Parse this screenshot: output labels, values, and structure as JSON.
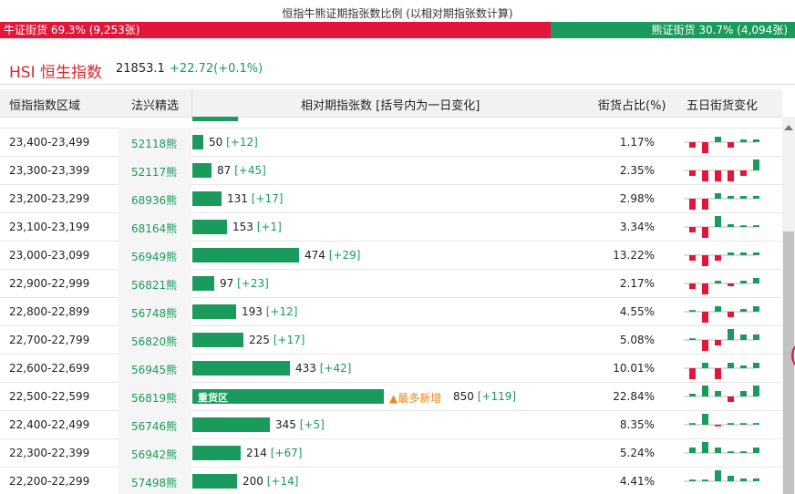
{
  "title": "恒指牛熊证期指张数比例 (以相对期指张数计算)",
  "ratio": {
    "bull_label": "牛证街货 69.3% (9,253张)",
    "bear_label": "熊证街货 30.7% (4,094张)",
    "bull_fraction": 0.693,
    "bull_color": "#e3163a",
    "bear_color": "#1a9a5c"
  },
  "index": {
    "name": "HSI 恒生指数",
    "price": "21853.1",
    "change": "+22.72(+0.1%)"
  },
  "table": {
    "headers": {
      "range": "恒指指数区域",
      "pick": "法兴精选",
      "contracts": "相对期指张数 [括号内为一日变化]",
      "share": "街货占比(%)",
      "five_day": "五日街货变化"
    },
    "rows": [
      {
        "range": "23,400-23,499",
        "code": "52118熊",
        "contracts": 50,
        "count": "50",
        "change": "[+12]",
        "share": "1.17%",
        "spark": [
          -1,
          -2,
          1,
          -1,
          0.5,
          0.5
        ]
      },
      {
        "range": "23,300-23,399",
        "code": "52117熊",
        "contracts": 87,
        "count": "87",
        "change": "[+45]",
        "share": "2.35%",
        "spark": [
          -1,
          -2,
          -2,
          -2,
          -1,
          2
        ]
      },
      {
        "range": "23,200-23,299",
        "code": "68936熊",
        "contracts": 131,
        "count": "131",
        "change": "[+17]",
        "share": "2.98%",
        "spark": [
          -2,
          -2,
          1,
          0.5,
          0.5,
          0.5
        ]
      },
      {
        "range": "23,100-23,199",
        "code": "68164熊",
        "contracts": 153,
        "count": "153",
        "change": "[+1]",
        "share": "3.34%",
        "spark": [
          -1,
          -2,
          2,
          0.5,
          0.3,
          0.3
        ]
      },
      {
        "range": "23,000-23,099",
        "code": "56949熊",
        "contracts": 474,
        "count": "474",
        "change": "[+29]",
        "share": "13.22%",
        "spark": [
          -1,
          -2,
          -1,
          0.5,
          0.5,
          0.5
        ]
      },
      {
        "range": "22,900-22,999",
        "code": "56821熊",
        "contracts": 97,
        "count": "97",
        "change": "[+23]",
        "share": "2.17%",
        "spark": [
          -1,
          -2,
          0.5,
          -0.5,
          0.5,
          1
        ]
      },
      {
        "range": "22,800-22,899",
        "code": "56748熊",
        "contracts": 193,
        "count": "193",
        "change": "[+12]",
        "share": "4.55%",
        "spark": [
          0.3,
          -2,
          1,
          -1,
          0.5,
          1
        ]
      },
      {
        "range": "22,700-22,799",
        "code": "56820熊",
        "contracts": 225,
        "count": "225",
        "change": "[+17]",
        "share": "5.08%",
        "spark": [
          0.3,
          -2,
          -1,
          2,
          1,
          1
        ]
      },
      {
        "range": "22,600-22,699",
        "code": "56945熊",
        "contracts": 433,
        "count": "433",
        "change": "[+42]",
        "share": "10.01%",
        "spark": [
          -2,
          1,
          -2,
          1,
          0.5,
          1
        ]
      },
      {
        "range": "22,500-22,599",
        "code": "56819熊",
        "contracts": 850,
        "count": "850",
        "change": "[+119]",
        "share": "22.84%",
        "spark": [
          0.5,
          2,
          1,
          -1,
          1,
          2
        ],
        "tag": "重货区",
        "most": "▲最多新增"
      },
      {
        "range": "22,400-22,499",
        "code": "56746熊",
        "contracts": 345,
        "count": "345",
        "change": "[+5]",
        "share": "8.35%",
        "spark": [
          0.3,
          2,
          -0.3,
          0.3,
          0.3,
          0.3
        ]
      },
      {
        "range": "22,300-22,399",
        "code": "56942熊",
        "contracts": 214,
        "count": "214",
        "change": "[+67]",
        "share": "5.24%",
        "spark": [
          1,
          2,
          1,
          0.3,
          0.3,
          1
        ]
      },
      {
        "range": "22,200-22,299",
        "code": "57498熊",
        "contracts": 200,
        "count": "200",
        "change": "[+14]",
        "share": "4.41%",
        "spark": [
          0.3,
          0.3,
          2,
          1,
          0.5,
          0.5
        ]
      }
    ]
  }
}
